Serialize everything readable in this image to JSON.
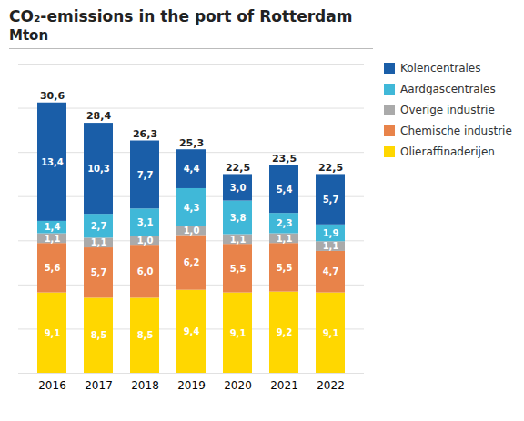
{
  "chart_data": {
    "type": "bar",
    "stacked": true,
    "title": "CO₂-emissions in the port of Rotterdam",
    "subtitle": "Mton",
    "categories": [
      "2016",
      "2017",
      "2018",
      "2019",
      "2020",
      "2021",
      "2022"
    ],
    "series": [
      {
        "name": "Olieraffinaderijen",
        "color": "#FFD700",
        "values": [
          9.1,
          8.5,
          8.5,
          9.4,
          9.1,
          9.2,
          9.1
        ],
        "value_labels": [
          "9,1",
          "8,5",
          "8,5",
          "9,4",
          "9,1",
          "9,2",
          "9,1"
        ]
      },
      {
        "name": "Chemische industrie",
        "color": "#E8834A",
        "values": [
          5.6,
          5.7,
          6.0,
          6.2,
          5.5,
          5.5,
          4.7
        ],
        "value_labels": [
          "5,6",
          "5,7",
          "6,0",
          "6,2",
          "5,5",
          "5,5",
          "4,7"
        ]
      },
      {
        "name": "Overige industrie",
        "color": "#AAAAAA",
        "values": [
          1.1,
          1.1,
          1.0,
          1.0,
          1.1,
          1.1,
          1.1
        ],
        "value_labels": [
          "1,1",
          "1,1",
          "1,0",
          "1,0",
          "1,1",
          "1,1",
          "1,1"
        ]
      },
      {
        "name": "Aardgascentrales",
        "color": "#40B8D8",
        "values": [
          1.4,
          2.7,
          3.1,
          4.3,
          3.8,
          2.3,
          1.9
        ],
        "value_labels": [
          "1,4",
          "2,7",
          "3,1",
          "4,3",
          "3,8",
          "2,3",
          "1,9"
        ]
      },
      {
        "name": "Kolencentrales",
        "color": "#1A5EA8",
        "values": [
          13.4,
          10.3,
          7.7,
          4.4,
          3.0,
          5.4,
          5.7
        ],
        "value_labels": [
          "13,4",
          "10,3",
          "7,7",
          "4,4",
          "3,0",
          "5,4",
          "5,7"
        ]
      }
    ],
    "totals": [
      30.6,
      28.4,
      26.3,
      25.3,
      22.5,
      23.5,
      22.5
    ],
    "total_labels": [
      "30,6",
      "28,4",
      "26,3",
      "25,3",
      "22,5",
      "23,5",
      "22,5"
    ],
    "ylim": [
      0,
      35
    ],
    "yticks": [
      0,
      5,
      10,
      15,
      20,
      25,
      30,
      35
    ],
    "grid": true,
    "tick_labels": "x",
    "data_labels": true,
    "legend": "right"
  }
}
